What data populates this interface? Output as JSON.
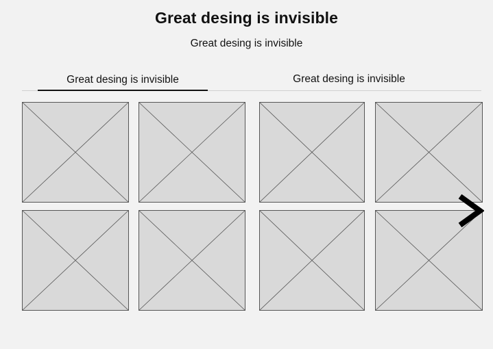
{
  "header": {
    "title": "Great desing is invisible",
    "subtitle": "Great desing is invisible"
  },
  "tabs": [
    {
      "label": "Great desing is invisible",
      "active": true
    },
    {
      "label": "Great desing is invisible",
      "active": false
    }
  ],
  "gallery": {
    "item_count": 8,
    "placeholder_fill": "#d9d9d9",
    "placeholder_stroke": "#555555"
  },
  "carousel": {
    "next_icon": "chevron-right-icon"
  }
}
